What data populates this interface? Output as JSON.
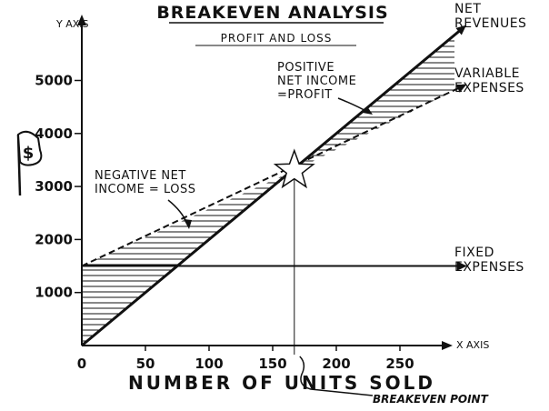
{
  "chart_data": {
    "type": "line",
    "title": "BREAKEVEN ANALYSIS",
    "subtitle": "PROFIT AND LOSS",
    "xlabel": "NUMBER OF UNITS SOLD",
    "xaxis_tag": "X AXIS",
    "ylabel": "Y AXIS",
    "xlim": [
      0,
      300
    ],
    "ylim": [
      0,
      6000
    ],
    "x_ticks": [
      0,
      50,
      100,
      150,
      200,
      250
    ],
    "y_ticks": [
      1000,
      2000,
      3000,
      4000,
      5000
    ],
    "grid": false,
    "series": [
      {
        "name": "NET REVENUES",
        "style": "solid",
        "x": [
          0,
          300
        ],
        "y": [
          0,
          6000
        ]
      },
      {
        "name": "VARIABLE EXPENSES",
        "style": "dashed",
        "x": [
          0,
          300
        ],
        "y": [
          1500,
          4900
        ]
      },
      {
        "name": "FIXED EXPENSES",
        "style": "solid",
        "x": [
          0,
          300
        ],
        "y": [
          1500,
          1500
        ]
      }
    ],
    "breakeven": {
      "x": 167,
      "y": 3300,
      "label": "BREAKEVEN POINT"
    },
    "annotations": [
      {
        "text_lines": [
          "POSITIVE",
          "NET INCOME",
          "=PROFIT"
        ]
      },
      {
        "text_lines": [
          "NEGATIVE NET",
          "INCOME = LOSS"
        ]
      }
    ],
    "legend_labels": [
      [
        "NET",
        "REVENUES"
      ],
      [
        "VARIABLE",
        "EXPENSES"
      ],
      [
        "FIXED",
        "EXPENSES"
      ]
    ],
    "flag_symbol": "$",
    "colors": {
      "ink": "#111111",
      "paper": "#ffffff"
    }
  }
}
